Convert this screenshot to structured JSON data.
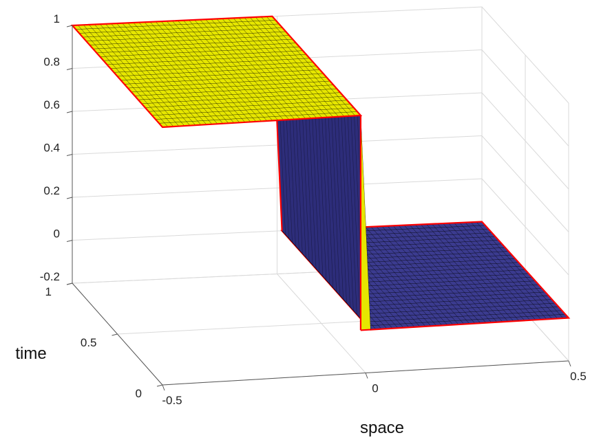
{
  "chart_data": {
    "type": "surface",
    "xlabel": "space",
    "ylabel": "time",
    "x_ticks": [
      "-0.5",
      "0",
      "0.5"
    ],
    "y_ticks": [
      "0",
      "0.5",
      "1"
    ],
    "z_ticks": [
      "-0.2",
      "0",
      "0.2",
      "0.4",
      "0.6",
      "0.8",
      "1"
    ],
    "xlim": [
      -0.5,
      0.5
    ],
    "ylim": [
      0,
      1
    ],
    "zlim": [
      -0.2,
      1
    ],
    "x": [
      -0.5,
      0,
      0.5
    ],
    "surface": [
      {
        "region": "x < 0",
        "value": 1
      },
      {
        "region": "x > 0",
        "value": 0
      }
    ],
    "grid": true,
    "colors": {
      "high": "#e6e600",
      "low": "#3b3b8f",
      "edge": "#ff0000",
      "mesh": "#000000"
    }
  }
}
